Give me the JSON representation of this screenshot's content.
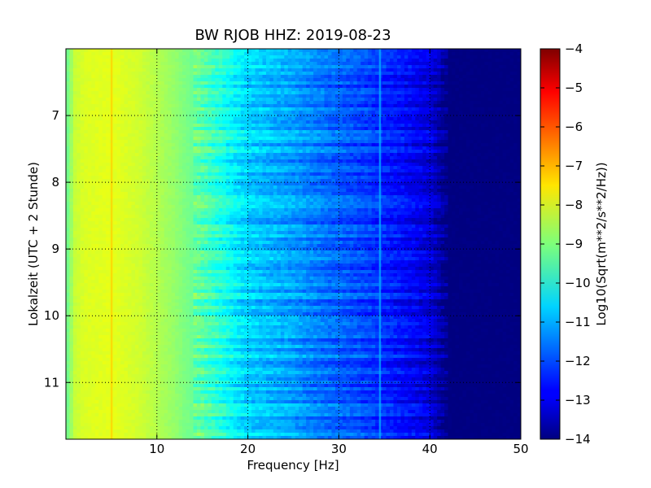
{
  "chart_data": {
    "type": "heatmap",
    "title": "BW RJOB HHZ: 2019-08-23",
    "xlabel": "Frequency [Hz]",
    "ylabel": "Lokalzeit (UTC + 2 Stunde)",
    "xlim": [
      0,
      50
    ],
    "ylim": [
      6.0,
      11.85
    ],
    "y_inverted": true,
    "x_ticks": [
      10,
      20,
      30,
      40,
      50
    ],
    "y_ticks": [
      7,
      8,
      9,
      10,
      11
    ],
    "grid": true,
    "colormap": "jet",
    "colorbar": {
      "label": "Log10(Sqrt(m**2/s**2/Hz))",
      "range": [
        -14,
        -4
      ],
      "ticks": [
        -4,
        -5,
        -6,
        -7,
        -8,
        -9,
        -10,
        -11,
        -12,
        -13,
        -14
      ]
    },
    "spectral_profile": {
      "frequency_hz": [
        0,
        1,
        2,
        5,
        8,
        12,
        15,
        18,
        20,
        23,
        25,
        28,
        30,
        33,
        35,
        38,
        40,
        42,
        45,
        50
      ],
      "log_amplitude": [
        -9.3,
        -8.3,
        -8.1,
        -8.0,
        -8.2,
        -8.8,
        -9.4,
        -10.2,
        -10.7,
        -11.0,
        -11.2,
        -11.6,
        -11.8,
        -12.1,
        -12.4,
        -12.8,
        -13.1,
        -14.0,
        -14.0,
        -14.0
      ]
    },
    "features": [
      {
        "type": "line",
        "frequency_hz": 5.0,
        "value": -7.3
      },
      {
        "type": "line",
        "frequency_hz": 34.5,
        "value": -11.0
      }
    ]
  }
}
